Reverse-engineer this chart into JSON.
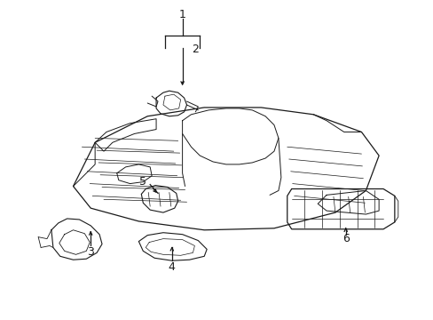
{
  "background_color": "#ffffff",
  "line_color": "#1a1a1a",
  "figsize": [
    4.89,
    3.6
  ],
  "dpi": 100,
  "callout_fontsize": 9,
  "label1": "1",
  "label2": "2",
  "label3": "3",
  "label4": "4",
  "label5": "5",
  "label6": "6"
}
